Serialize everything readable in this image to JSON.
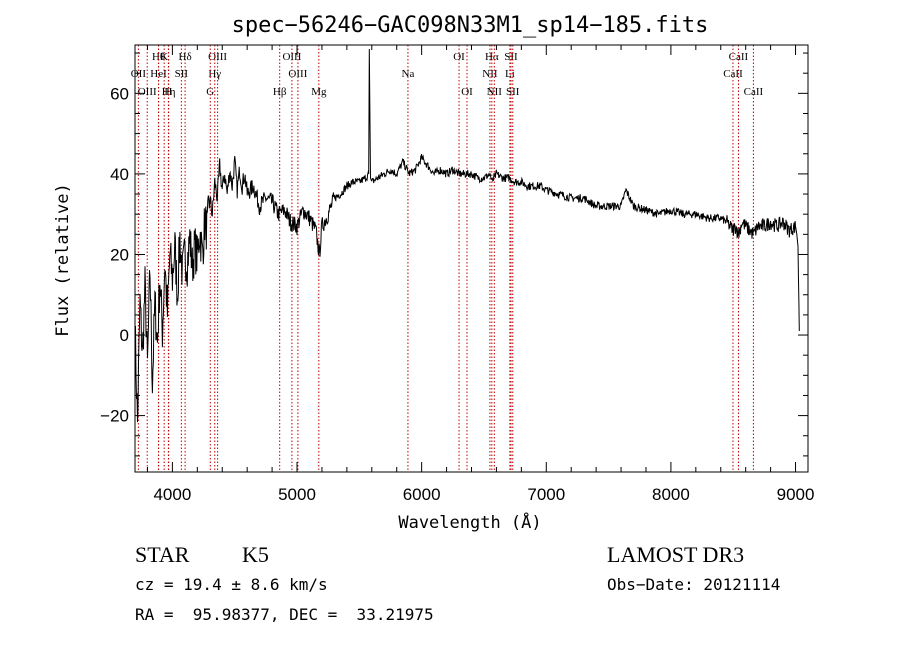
{
  "chart_data": {
    "type": "line",
    "title": "spec−56246−GAC098N33M1_sp14−185.fits",
    "xlabel": "Wavelength (Å)",
    "ylabel": "Flux (relative)",
    "xlim": [
      3700,
      9100
    ],
    "ylim": [
      -34,
      72
    ],
    "xticks": [
      {
        "value": 4000,
        "label": "4000"
      },
      {
        "value": 5000,
        "label": "5000"
      },
      {
        "value": 6000,
        "label": "6000"
      },
      {
        "value": 7000,
        "label": "7000"
      },
      {
        "value": 8000,
        "label": "8000"
      },
      {
        "value": 9000,
        "label": "9000"
      }
    ],
    "yticks": [
      {
        "value": -20,
        "label": "−20"
      },
      {
        "value": 0,
        "label": "0"
      },
      {
        "value": 20,
        "label": "20"
      },
      {
        "value": 40,
        "label": "40"
      },
      {
        "value": 60,
        "label": "60"
      }
    ],
    "series": [
      {
        "name": "flux",
        "x": [
          3700,
          3720,
          3740,
          3760,
          3780,
          3800,
          3820,
          3840,
          3860,
          3880,
          3900,
          3920,
          3940,
          3960,
          3980,
          4000,
          4020,
          4040,
          4060,
          4080,
          4100,
          4120,
          4140,
          4160,
          4180,
          4200,
          4220,
          4240,
          4260,
          4280,
          4300,
          4320,
          4340,
          4360,
          4380,
          4400,
          4420,
          4440,
          4460,
          4480,
          4500,
          4520,
          4540,
          4560,
          4580,
          4600,
          4650,
          4700,
          4750,
          4800,
          4850,
          4900,
          4950,
          5000,
          5050,
          5100,
          5150,
          5180,
          5200,
          5250,
          5300,
          5350,
          5400,
          5450,
          5500,
          5550,
          5575,
          5580,
          5590,
          5600,
          5650,
          5700,
          5750,
          5800,
          5850,
          5900,
          5950,
          6000,
          6050,
          6100,
          6150,
          6200,
          6250,
          6300,
          6350,
          6400,
          6450,
          6500,
          6550,
          6563,
          6600,
          6650,
          6700,
          6750,
          6800,
          6850,
          6900,
          6950,
          7000,
          7100,
          7200,
          7300,
          7400,
          7500,
          7600,
          7640,
          7700,
          7800,
          7900,
          8000,
          8100,
          8200,
          8300,
          8400,
          8450,
          8498,
          8520,
          8542,
          8570,
          8600,
          8662,
          8700,
          8750,
          8800,
          8850,
          8900,
          8950,
          9000,
          9010,
          9020,
          9030
        ],
        "y": [
          2,
          -22,
          8,
          -5,
          12,
          -8,
          16,
          -12,
          8,
          -2,
          14,
          1,
          18,
          5,
          20,
          14,
          22,
          10,
          24,
          15,
          20,
          18,
          24,
          17,
          22,
          19,
          26,
          20,
          28,
          26,
          34,
          30,
          38,
          34,
          42,
          36,
          40,
          35,
          41,
          37,
          43,
          36,
          41,
          37,
          40,
          35,
          37,
          32,
          34,
          33,
          30,
          31,
          28,
          27,
          31,
          29,
          26,
          20,
          27,
          30,
          34,
          35,
          37,
          38,
          38,
          39,
          40,
          71,
          39,
          38,
          39,
          40,
          41,
          40,
          43,
          40,
          41,
          44,
          42,
          40,
          41,
          40,
          41,
          40,
          40,
          40,
          39,
          39,
          40,
          38,
          40,
          39,
          39,
          38,
          38,
          37,
          37,
          37,
          36,
          35,
          34,
          34,
          32,
          32,
          32,
          36,
          32,
          31,
          30,
          31,
          30,
          30,
          29,
          29,
          28,
          26,
          27,
          25,
          28,
          27,
          25,
          27,
          27,
          28,
          27,
          28,
          26,
          27,
          25,
          22,
          1
        ]
      }
    ],
    "line_groups": [
      {
        "row": 1,
        "items": [
          {
            "x": 3889,
            "label": "Hθ"
          },
          {
            "x": 3934,
            "label": "K"
          },
          {
            "x": 4102,
            "label": "Hδ"
          },
          {
            "x": 4363,
            "label": "OIII"
          },
          {
            "x": 4959,
            "label": "OIII"
          },
          {
            "x": 6300,
            "label": "OI"
          },
          {
            "x": 6563,
            "label": "Hα"
          },
          {
            "x": 6717,
            "label": "SII"
          },
          {
            "x": 8542,
            "label": "CaII"
          }
        ]
      },
      {
        "row": 2,
        "items": [
          {
            "x": 3727,
            "label": "OII"
          },
          {
            "x": 3889,
            "label": "HeI"
          },
          {
            "x": 4072,
            "label": "SII"
          },
          {
            "x": 4340,
            "label": "Hγ"
          },
          {
            "x": 5007,
            "label": "OIII"
          },
          {
            "x": 5890,
            "label": "Na"
          },
          {
            "x": 6548,
            "label": "NII"
          },
          {
            "x": 6708,
            "label": "Li"
          },
          {
            "x": 8498,
            "label": "CaII"
          }
        ]
      },
      {
        "row": 3,
        "items": [
          {
            "x": 3798,
            "label": "OIII"
          },
          {
            "x": 3970,
            "label": "Hη"
          },
          {
            "x": 3968,
            "label": "H"
          },
          {
            "x": 4304,
            "label": "G"
          },
          {
            "x": 4861,
            "label": "Hβ"
          },
          {
            "x": 5175,
            "label": "Mg"
          },
          {
            "x": 6364,
            "label": "OI"
          },
          {
            "x": 6583,
            "label": "NII"
          },
          {
            "x": 6731,
            "label": "SII"
          },
          {
            "x": 8662,
            "label": "CaII"
          }
        ]
      }
    ]
  },
  "info": {
    "class": "STAR",
    "subclass": "K5",
    "survey": "LAMOST DR3",
    "cz": "cz = 19.4 ± 8.6 km/s",
    "obs_date": "Obs−Date: 20121114",
    "radec": "RA =  95.98377, DEC =  33.21975"
  }
}
